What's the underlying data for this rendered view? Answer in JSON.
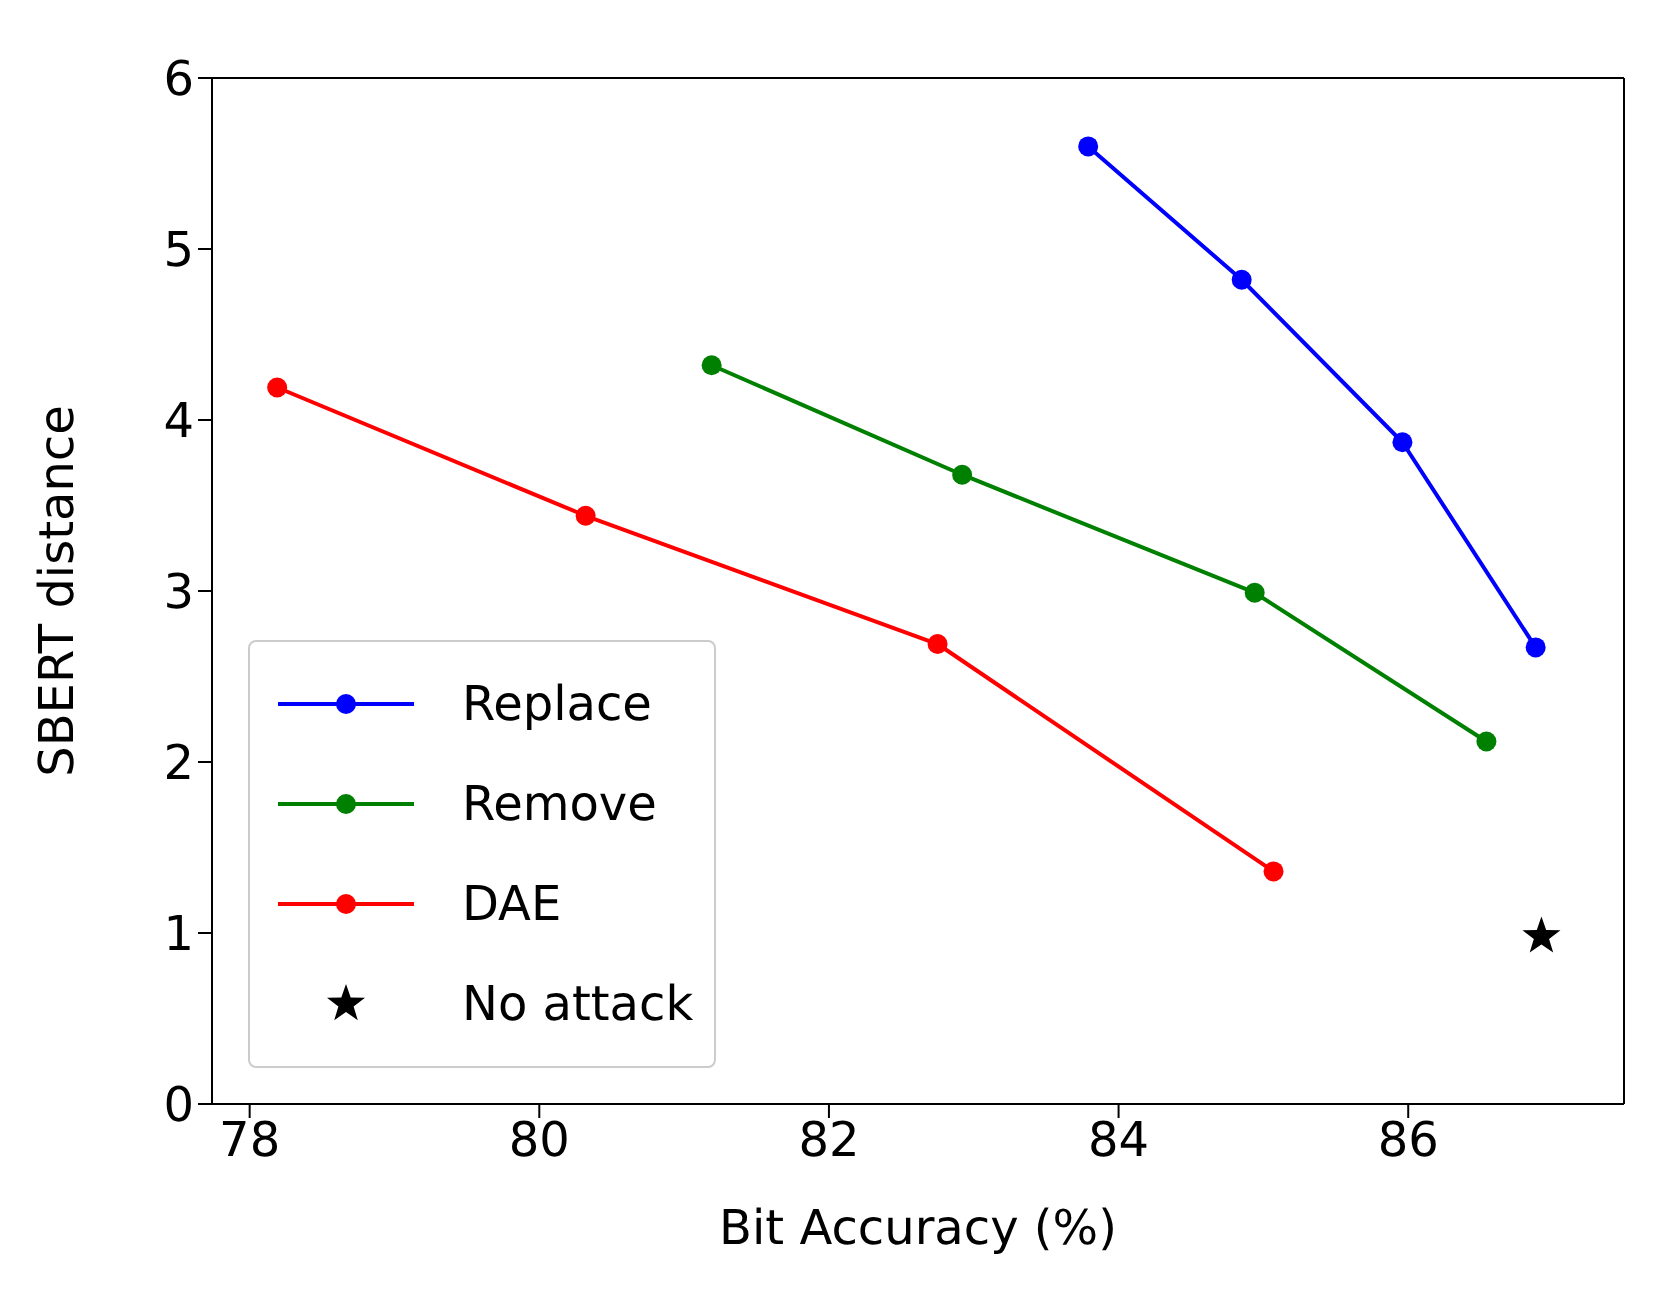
{
  "chart_data": {
    "type": "line",
    "xlabel": "Bit Accuracy (%)",
    "ylabel": "SBERT distance",
    "xlim": [
      77.74,
      87.49
    ],
    "ylim": [
      0,
      6
    ],
    "xticks": [
      78,
      80,
      82,
      84,
      86
    ],
    "yticks": [
      0,
      1,
      2,
      3,
      4,
      5,
      6
    ],
    "grid": false,
    "legend": "bottom left",
    "marker": "circle",
    "line_style": "solid",
    "series": [
      {
        "name": "Replace",
        "color": "#0000ff",
        "x": [
          83.79,
          84.85,
          85.96,
          86.88
        ],
        "values": [
          5.6,
          4.82,
          3.87,
          2.67
        ]
      },
      {
        "name": "Remove",
        "color": "#008000",
        "x": [
          81.19,
          82.92,
          84.94,
          86.54
        ],
        "values": [
          4.32,
          3.68,
          2.99,
          2.12
        ]
      },
      {
        "name": "DAE",
        "color": "#ff0000",
        "x": [
          78.19,
          80.32,
          82.75,
          85.07
        ],
        "values": [
          4.19,
          3.44,
          2.69,
          1.36
        ]
      },
      {
        "name": "No attack",
        "type": "scatter",
        "marker": "star",
        "color": "#000000",
        "x": [
          86.92
        ],
        "values": [
          0.98
        ]
      }
    ]
  }
}
